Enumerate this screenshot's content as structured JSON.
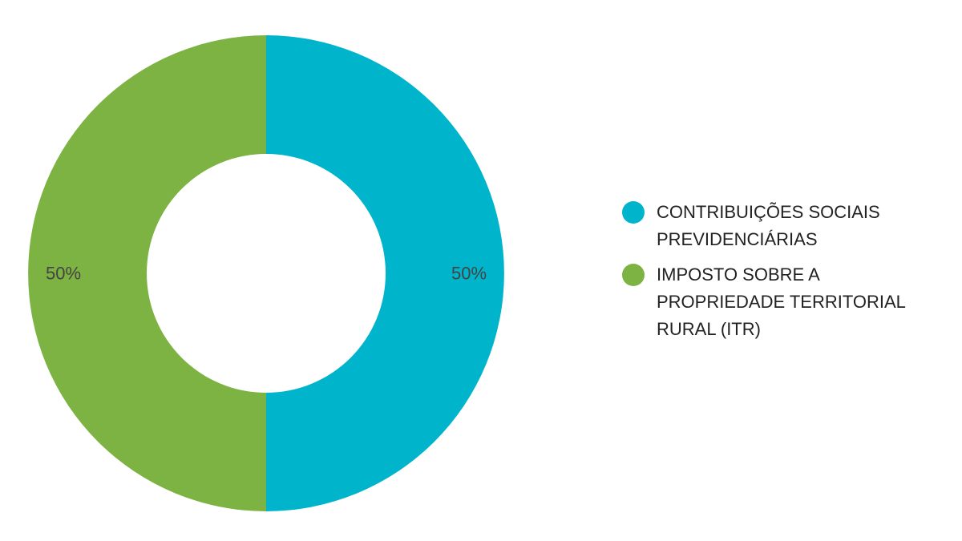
{
  "chart_data": {
    "type": "pie",
    "donut": true,
    "title": "",
    "legend_position": "right",
    "series": [
      {
        "name": "CONTRIBUIÇÕES SOCIAIS PREVIDENCIÁRIAS",
        "value": 50,
        "label": "50%",
        "color": "#00b4cc"
      },
      {
        "name": "IMPOSTO SOBRE A PROPRIEDADE TERRITORIAL RURAL (ITR)",
        "value": 50,
        "label": "50%",
        "color": "#7cb342"
      }
    ]
  },
  "legend": {
    "items": [
      {
        "label": "CONTRIBUIÇÕES SOCIAIS PREVIDENCIÁRIAS",
        "color": "#00b4cc"
      },
      {
        "label": "IMPOSTO SOBRE A PROPRIEDADE TERRITORIAL RURAL (ITR)",
        "color": "#7cb342"
      }
    ]
  }
}
